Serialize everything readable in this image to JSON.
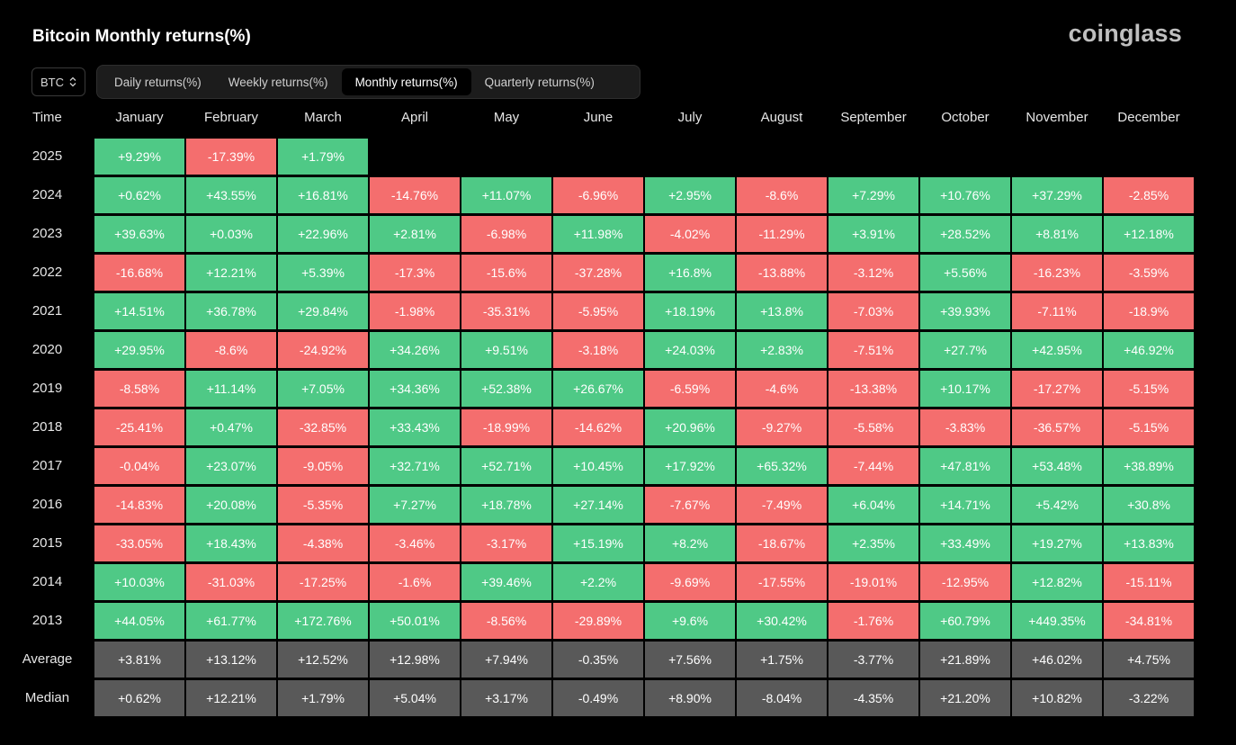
{
  "header": {
    "title": "Bitcoin Monthly returns(%)",
    "logo": "coinglass"
  },
  "asset_select": {
    "value": "BTC",
    "icon": "chevron-up-down-icon"
  },
  "tabs": [
    {
      "label": "Daily returns(%)",
      "active": false
    },
    {
      "label": "Weekly returns(%)",
      "active": false
    },
    {
      "label": "Monthly returns(%)",
      "active": true
    },
    {
      "label": "Quarterly returns(%)",
      "active": false
    }
  ],
  "colors": {
    "positive": "#4fc986",
    "negative": "#f46e6e",
    "summary": "#595959",
    "background": "#000000"
  },
  "table": {
    "time_header": "Time",
    "months": [
      "January",
      "February",
      "March",
      "April",
      "May",
      "June",
      "July",
      "August",
      "September",
      "October",
      "November",
      "December"
    ],
    "rows": [
      {
        "year": "2025",
        "values": [
          "+9.29%",
          "-17.39%",
          "+1.79%",
          "",
          "",
          "",
          "",
          "",
          "",
          "",
          "",
          ""
        ]
      },
      {
        "year": "2024",
        "values": [
          "+0.62%",
          "+43.55%",
          "+16.81%",
          "-14.76%",
          "+11.07%",
          "-6.96%",
          "+2.95%",
          "-8.6%",
          "+7.29%",
          "+10.76%",
          "+37.29%",
          "-2.85%"
        ]
      },
      {
        "year": "2023",
        "values": [
          "+39.63%",
          "+0.03%",
          "+22.96%",
          "+2.81%",
          "-6.98%",
          "+11.98%",
          "-4.02%",
          "-11.29%",
          "+3.91%",
          "+28.52%",
          "+8.81%",
          "+12.18%"
        ]
      },
      {
        "year": "2022",
        "values": [
          "-16.68%",
          "+12.21%",
          "+5.39%",
          "-17.3%",
          "-15.6%",
          "-37.28%",
          "+16.8%",
          "-13.88%",
          "-3.12%",
          "+5.56%",
          "-16.23%",
          "-3.59%"
        ]
      },
      {
        "year": "2021",
        "values": [
          "+14.51%",
          "+36.78%",
          "+29.84%",
          "-1.98%",
          "-35.31%",
          "-5.95%",
          "+18.19%",
          "+13.8%",
          "-7.03%",
          "+39.93%",
          "-7.11%",
          "-18.9%"
        ]
      },
      {
        "year": "2020",
        "values": [
          "+29.95%",
          "-8.6%",
          "-24.92%",
          "+34.26%",
          "+9.51%",
          "-3.18%",
          "+24.03%",
          "+2.83%",
          "-7.51%",
          "+27.7%",
          "+42.95%",
          "+46.92%"
        ]
      },
      {
        "year": "2019",
        "values": [
          "-8.58%",
          "+11.14%",
          "+7.05%",
          "+34.36%",
          "+52.38%",
          "+26.67%",
          "-6.59%",
          "-4.6%",
          "-13.38%",
          "+10.17%",
          "-17.27%",
          "-5.15%"
        ]
      },
      {
        "year": "2018",
        "values": [
          "-25.41%",
          "+0.47%",
          "-32.85%",
          "+33.43%",
          "-18.99%",
          "-14.62%",
          "+20.96%",
          "-9.27%",
          "-5.58%",
          "-3.83%",
          "-36.57%",
          "-5.15%"
        ]
      },
      {
        "year": "2017",
        "values": [
          "-0.04%",
          "+23.07%",
          "-9.05%",
          "+32.71%",
          "+52.71%",
          "+10.45%",
          "+17.92%",
          "+65.32%",
          "-7.44%",
          "+47.81%",
          "+53.48%",
          "+38.89%"
        ]
      },
      {
        "year": "2016",
        "values": [
          "-14.83%",
          "+20.08%",
          "-5.35%",
          "+7.27%",
          "+18.78%",
          "+27.14%",
          "-7.67%",
          "-7.49%",
          "+6.04%",
          "+14.71%",
          "+5.42%",
          "+30.8%"
        ]
      },
      {
        "year": "2015",
        "values": [
          "-33.05%",
          "+18.43%",
          "-4.38%",
          "-3.46%",
          "-3.17%",
          "+15.19%",
          "+8.2%",
          "-18.67%",
          "+2.35%",
          "+33.49%",
          "+19.27%",
          "+13.83%"
        ]
      },
      {
        "year": "2014",
        "values": [
          "+10.03%",
          "-31.03%",
          "-17.25%",
          "-1.6%",
          "+39.46%",
          "+2.2%",
          "-9.69%",
          "-17.55%",
          "-19.01%",
          "-12.95%",
          "+12.82%",
          "-15.11%"
        ]
      },
      {
        "year": "2013",
        "values": [
          "+44.05%",
          "+61.77%",
          "+172.76%",
          "+50.01%",
          "-8.56%",
          "-29.89%",
          "+9.6%",
          "+30.42%",
          "-1.76%",
          "+60.79%",
          "+449.35%",
          "-34.81%"
        ]
      }
    ],
    "summary_rows": [
      {
        "label": "Average",
        "values": [
          "+3.81%",
          "+13.12%",
          "+12.52%",
          "+12.98%",
          "+7.94%",
          "-0.35%",
          "+7.56%",
          "+1.75%",
          "-3.77%",
          "+21.89%",
          "+46.02%",
          "+4.75%"
        ]
      },
      {
        "label": "Median",
        "values": [
          "+0.62%",
          "+12.21%",
          "+1.79%",
          "+5.04%",
          "+3.17%",
          "-0.49%",
          "+8.90%",
          "-8.04%",
          "-4.35%",
          "+21.20%",
          "+10.82%",
          "-3.22%"
        ]
      }
    ]
  }
}
